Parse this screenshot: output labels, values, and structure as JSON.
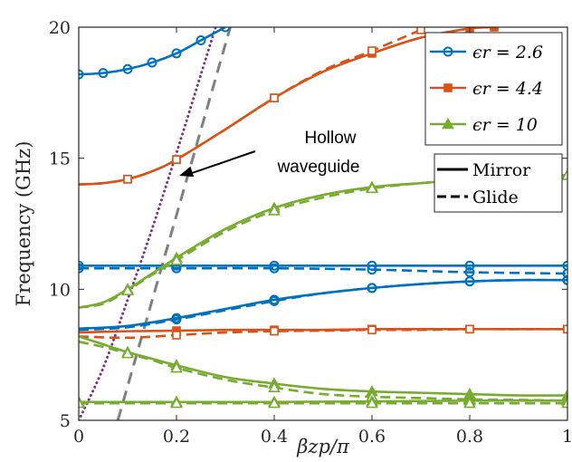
{
  "chart_data": {
    "type": "line",
    "xlabel": "βzp/π",
    "ylabel": "Frequency (GHz)",
    "xlim": [
      0,
      1
    ],
    "ylim": [
      5,
      20
    ],
    "xticks": [
      0,
      0.2,
      0.4,
      0.6,
      0.8,
      1
    ],
    "xtick_labels": [
      "0",
      "0.2",
      "0.4",
      "0.6",
      "0.8",
      "1"
    ],
    "yticks": [
      5,
      10,
      15,
      20
    ],
    "ytick_labels": [
      "5",
      "10",
      "15",
      "20"
    ],
    "grid": false,
    "legend_materials": [
      {
        "label": "ϵr = 2.6",
        "color": "#0072BD",
        "marker": "circle"
      },
      {
        "label": "ϵr = 4.4",
        "color": "#D95319",
        "marker": "square"
      },
      {
        "label": "ϵr = 10",
        "color": "#77AC30",
        "marker": "triangle"
      }
    ],
    "legend_styles": [
      {
        "label": "Mirror",
        "dash": "solid"
      },
      {
        "label": "Glide",
        "dash": "dashed"
      }
    ],
    "annotation": {
      "line1": "Hollow",
      "line2": "waveguide",
      "arrow_target": {
        "x": 0.2,
        "y": 14.4
      }
    },
    "light_lines": [
      {
        "color": "#7E2F8E",
        "style": "dotted",
        "x": [
          0.0,
          0.05,
          0.1,
          0.15,
          0.2,
          0.25,
          0.3
        ],
        "y": [
          5.0,
          7.0,
          9.6,
          12.3,
          15.2,
          18.2,
          21.2
        ]
      },
      {
        "color": "#808080",
        "style": "dashed",
        "x": [
          0.08,
          0.31
        ],
        "y": [
          5.0,
          20.0
        ]
      }
    ],
    "series": [
      {
        "material": 0,
        "style": "solid",
        "marker": "circle",
        "x": [
          0,
          0.05,
          0.1,
          0.15,
          0.2,
          0.25,
          0.3
        ],
        "y": [
          18.2,
          18.25,
          18.4,
          18.65,
          19.0,
          19.5,
          20.0
        ]
      },
      {
        "material": 0,
        "style": "solid",
        "marker": "circle",
        "x": [
          0,
          0.2,
          0.4,
          0.6,
          0.8,
          1.0
        ],
        "y": [
          10.9,
          10.9,
          10.9,
          10.9,
          10.9,
          10.9
        ]
      },
      {
        "material": 0,
        "style": "dashed",
        "marker": "circle",
        "x": [
          0,
          0.2,
          0.4,
          0.6,
          0.8,
          1.0
        ],
        "y": [
          10.8,
          10.8,
          10.8,
          10.75,
          10.65,
          10.6
        ]
      },
      {
        "material": 0,
        "style": "solid",
        "marker": "circle",
        "x": [
          0,
          0.1,
          0.2,
          0.3,
          0.4,
          0.5,
          0.6,
          0.7,
          0.8,
          0.9,
          1.0
        ],
        "y": [
          8.5,
          8.6,
          8.9,
          9.25,
          9.6,
          9.85,
          10.05,
          10.2,
          10.3,
          10.35,
          10.35
        ]
      },
      {
        "material": 0,
        "style": "dashed",
        "marker": "circle",
        "x": [
          0,
          0.1,
          0.2,
          0.3,
          0.4,
          0.5,
          0.6,
          0.7,
          0.8,
          0.9,
          1.0
        ],
        "y": [
          8.45,
          8.55,
          8.85,
          9.2,
          9.55,
          9.85,
          10.05,
          10.2,
          10.3,
          10.35,
          10.35
        ]
      },
      {
        "material": 1,
        "style": "solid",
        "marker": "square",
        "x": [
          0,
          0.05,
          0.1,
          0.15,
          0.2,
          0.3,
          0.4,
          0.5,
          0.6,
          0.7,
          0.8,
          0.85
        ],
        "y": [
          14.0,
          14.05,
          14.2,
          14.5,
          14.95,
          16.1,
          17.3,
          18.3,
          19.0,
          19.6,
          19.95,
          20.0
        ]
      },
      {
        "material": 1,
        "style": "dashed",
        "marker": "square",
        "x": [
          0,
          0.05,
          0.1,
          0.15,
          0.2,
          0.3,
          0.4,
          0.5,
          0.6,
          0.7
        ],
        "y": [
          14.0,
          14.05,
          14.2,
          14.5,
          14.95,
          16.1,
          17.3,
          18.35,
          19.1,
          19.9
        ]
      },
      {
        "material": 1,
        "style": "solid",
        "marker": "square",
        "x": [
          0,
          0.1,
          0.2,
          0.3,
          0.4,
          0.5,
          0.6,
          0.7,
          0.8,
          0.9,
          1.0
        ],
        "y": [
          8.35,
          8.4,
          8.42,
          8.45,
          8.45,
          8.45,
          8.48,
          8.48,
          8.48,
          8.48,
          8.48
        ]
      },
      {
        "material": 1,
        "style": "dashed",
        "marker": "square",
        "x": [
          0,
          0.1,
          0.2,
          0.3,
          0.4,
          0.5,
          0.6,
          0.7,
          0.8,
          0.9,
          1.0
        ],
        "y": [
          8.2,
          8.15,
          8.25,
          8.35,
          8.4,
          8.42,
          8.45,
          8.45,
          8.48,
          8.48,
          8.48
        ]
      },
      {
        "material": 2,
        "style": "solid",
        "marker": "triangle",
        "x": [
          0,
          0.05,
          0.1,
          0.15,
          0.2,
          0.3,
          0.4,
          0.5,
          0.6,
          0.7,
          0.8,
          0.9,
          1.0
        ],
        "y": [
          9.3,
          9.5,
          10.0,
          10.6,
          11.2,
          12.3,
          13.1,
          13.6,
          13.9,
          14.05,
          14.2,
          14.3,
          14.35
        ]
      },
      {
        "material": 2,
        "style": "dashed",
        "marker": "triangle",
        "x": [
          0,
          0.05,
          0.1,
          0.15,
          0.2,
          0.3,
          0.4,
          0.5,
          0.6,
          0.7,
          0.8,
          0.9,
          1.0
        ],
        "y": [
          9.3,
          9.45,
          9.95,
          10.55,
          11.1,
          12.2,
          13.0,
          13.5,
          13.85,
          14.05,
          14.2,
          14.3,
          14.35
        ]
      },
      {
        "material": 2,
        "style": "solid",
        "marker": "triangle",
        "x": [
          0,
          0.05,
          0.1,
          0.15,
          0.2,
          0.3,
          0.4,
          0.5,
          0.6,
          0.7,
          0.8,
          0.9,
          1.0
        ],
        "y": [
          8.2,
          7.9,
          7.6,
          7.35,
          7.1,
          6.65,
          6.4,
          6.2,
          6.1,
          6.05,
          6.0,
          5.95,
          5.95
        ]
      },
      {
        "material": 2,
        "style": "dashed",
        "marker": "triangle",
        "x": [
          0,
          0.05,
          0.1,
          0.15,
          0.2,
          0.3,
          0.4,
          0.5,
          0.6,
          0.7,
          0.8,
          0.9,
          1.0
        ],
        "y": [
          8.0,
          7.8,
          7.55,
          7.3,
          7.0,
          6.55,
          6.25,
          6.0,
          5.9,
          5.85,
          5.8,
          5.78,
          5.75
        ]
      },
      {
        "material": 2,
        "style": "solid",
        "marker": "triangle",
        "x": [
          0,
          0.2,
          0.4,
          0.6,
          0.8,
          1.0
        ],
        "y": [
          5.7,
          5.7,
          5.7,
          5.72,
          5.75,
          5.75
        ]
      },
      {
        "material": 2,
        "style": "dashed",
        "marker": "triangle",
        "x": [
          0,
          0.2,
          0.4,
          0.6,
          0.8,
          1.0
        ],
        "y": [
          5.65,
          5.65,
          5.65,
          5.65,
          5.65,
          5.65
        ]
      }
    ]
  }
}
